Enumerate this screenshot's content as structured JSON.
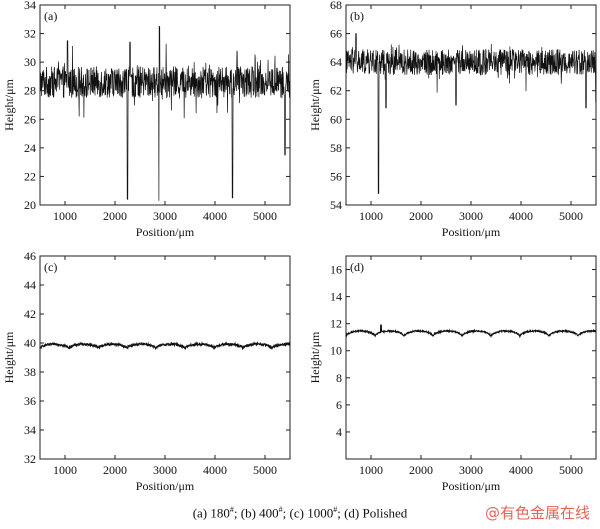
{
  "caption": {
    "a": "(a) 180",
    "b": "; (b) 400",
    "c": "; (c) 1000",
    "d": "; (d) Polished",
    "sup": "#"
  },
  "watermark": "@有色金属在线",
  "colors": {
    "line": "#111111",
    "axis": "#222222",
    "watermark": "#e04a3a"
  },
  "chart_data": [
    {
      "type": "line",
      "panel": "(a)",
      "xlabel": "Position/μm",
      "ylabel": "Height/μm",
      "xlim": [
        500,
        5500
      ],
      "ylim": [
        20,
        34
      ],
      "xticks": [
        1000,
        2000,
        3000,
        4000,
        5000
      ],
      "yticks": [
        20,
        22,
        24,
        26,
        28,
        30,
        32,
        34
      ],
      "profile": {
        "baseline": 28.6,
        "noise": 1.1,
        "spikes": [
          [
            1050,
            31.5
          ],
          [
            2250,
            20.4
          ],
          [
            2300,
            31.4
          ],
          [
            2880,
            20.3
          ],
          [
            2890,
            32.5
          ],
          [
            4350,
            20.5
          ],
          [
            5400,
            23.5
          ]
        ]
      }
    },
    {
      "type": "line",
      "panel": "(b)",
      "xlabel": "Position/μm",
      "ylabel": "Height/μm",
      "xlim": [
        500,
        5500
      ],
      "ylim": [
        54,
        68
      ],
      "xticks": [
        1000,
        2000,
        3000,
        4000,
        5000
      ],
      "yticks": [
        54,
        56,
        58,
        60,
        62,
        64,
        66,
        68
      ],
      "profile": {
        "baseline": 64.0,
        "noise": 0.9,
        "spikes": [
          [
            700,
            66.0
          ],
          [
            1150,
            54.8
          ],
          [
            1300,
            60.8
          ],
          [
            2700,
            61.0
          ],
          [
            5300,
            60.8
          ],
          [
            5500,
            61.2
          ]
        ]
      }
    },
    {
      "type": "line",
      "panel": "(c)",
      "xlabel": "Position/μm",
      "ylabel": "Height/μm",
      "xlim": [
        500,
        5500
      ],
      "ylim": [
        32,
        46
      ],
      "xticks": [
        1000,
        2000,
        3000,
        4000,
        5000
      ],
      "yticks": [
        32,
        34,
        36,
        38,
        40,
        42,
        44,
        46
      ],
      "profile": {
        "baseline": 39.8,
        "wave_amp": 0.3,
        "period": 580,
        "noise": 0.08,
        "spikes": []
      }
    },
    {
      "type": "line",
      "panel": "(d)",
      "xlabel": "Position/μm",
      "ylabel": "Height/μm",
      "xlim": [
        500,
        5500
      ],
      "ylim": [
        2,
        17
      ],
      "xticks": [
        1000,
        2000,
        3000,
        4000,
        5000
      ],
      "yticks": [
        4,
        6,
        8,
        10,
        12,
        14,
        16
      ],
      "profile": {
        "baseline": 11.3,
        "wave_amp": 0.4,
        "period": 580,
        "noise": 0.05,
        "spikes": [
          [
            1200,
            11.9
          ]
        ]
      }
    }
  ]
}
